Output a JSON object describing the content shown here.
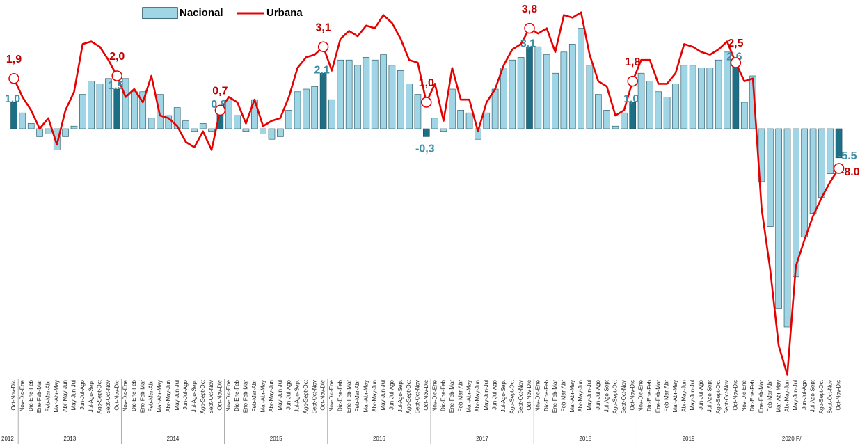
{
  "chart_data": {
    "type": "bar_line",
    "categories": [
      "Oct-Nov-Dic",
      "Nov-Dic-Ene",
      "Dic-Ene-Feb",
      "Ene-Feb-Mar",
      "Feb-Mar-Abr",
      "Mar-Abr-May",
      "Abr-May-Jun",
      "May-Jun-Jul",
      "Jun-Jul-Ago",
      "Jul-Ago-Sept",
      "Ago-Sept-Oct",
      "Sept-Oct-Nov",
      "Oct-Nov-Dic",
      "Nov-Dic-Ene",
      "Dic-Ene-Feb",
      "Ene-Feb-Mar",
      "Feb-Mar-Abr",
      "Mar-Abr-May",
      "Abr-May-Jun",
      "May-Jun-Jul",
      "Jun-Jul-Ago",
      "Jul-Ago-Sept",
      "Ago-Sept-Oct",
      "Sept-Oct-Nov",
      "Oct-Nov-Dic",
      "Nov-Dic-Ene",
      "Dic-Ene-Feb",
      "Ene-Feb-Mar",
      "Feb-Mar-Abr",
      "Mar-Abr-May",
      "Abr-May-Jun",
      "May-Jun-Jul",
      "Jun-Jul-Ago",
      "Jul-Ago-Sept",
      "Ago-Sept-Oct",
      "Sept-Oct-Nov",
      "Oct-Nov-Dic",
      "Nov-Dic-Ene",
      "Dic-Ene-Feb",
      "Ene-Feb-Mar",
      "Feb-Mar-Abr",
      "Mar-Abr-May",
      "Abr-May-Jun",
      "May-Jun-Jul",
      "Jun-Jul-Ago",
      "Jul-Ago-Sept",
      "Ago-Sept-Oct",
      "Sept-Oct-Nov",
      "Oct-Nov-Dic",
      "Nov-Dic-Ene",
      "Dic-Ene-Feb",
      "Ene-Feb-Mar",
      "Feb-Mar-Abr",
      "Mar-Abr-May",
      "Abr-May-Jun",
      "May-Jun-Jul",
      "Jun-Jul-Ago",
      "Jul-Ago-Sept",
      "Ago-Sept-Oct",
      "Sept-Oct-Nov",
      "Oct-Nov-Dic",
      "Nov-Dic-Ene",
      "Dic-Ene-Feb",
      "Ene-Feb-Mar",
      "Feb-Mar-Abr",
      "Mar-Abr-May",
      "Abr-May-Jun",
      "May-Jun-Jul",
      "Jun-Jul-Ago",
      "Jul-Ago-Sept",
      "Ago-Sept-Oct",
      "Sept-Oct-Nov",
      "Oct-Nov-Dic",
      "Nov-Dic-Ene",
      "Dic-Ene-Feb",
      "Ene-Feb-Mar",
      "Feb-Mar-Abr",
      "Mar-Abr-May",
      "Abr-May-Jun",
      "May-Jun-Jul",
      "Jun-Jul-Ago",
      "Jul-Ago-Sept",
      "Ago-Sept-Oct",
      "Sept-Oct-Nov",
      "Oct-Nov-Dic",
      "Nov-Dic-Ene",
      "Dic-Ene-Feb",
      "Ene-Feb-Mar",
      "Feb-Mar-Abr",
      "Mar-Abr-May",
      "Abr-May-Jun",
      "May-Jun-Jul",
      "Jun-Jul-Ago",
      "Jul-Ago-Sept",
      "Ago-Sept-Oct",
      "Sept-Oct-Nov",
      "Oct-Nov-Dic"
    ],
    "years": [
      "2012",
      "2013",
      "2014",
      "2015",
      "2016",
      "2017",
      "2018",
      "2019",
      "2020 P/"
    ],
    "series": [
      {
        "name": "Nacional",
        "color": "#9fd5e4",
        "highlight_color": "#1d6f86",
        "label_color": "#3b8ea5",
        "values": [
          1.0,
          0.6,
          0.2,
          -0.3,
          -0.2,
          -0.8,
          -0.3,
          0.1,
          1.3,
          1.8,
          1.7,
          1.9,
          1.5,
          1.9,
          1.4,
          1.4,
          0.4,
          1.3,
          0.5,
          0.8,
          0.3,
          -0.1,
          0.2,
          -0.1,
          0.8,
          1.1,
          0.5,
          -0.1,
          1.1,
          -0.2,
          -0.4,
          -0.3,
          0.7,
          1.4,
          1.5,
          1.6,
          2.1,
          1.1,
          2.6,
          2.6,
          2.4,
          2.7,
          2.6,
          2.8,
          2.4,
          2.2,
          1.7,
          1.3,
          -0.3,
          0.4,
          -0.1,
          1.5,
          0.7,
          0.6,
          -0.4,
          0.6,
          1.5,
          2.3,
          2.6,
          2.7,
          3.1,
          3.1,
          2.8,
          2.1,
          2.9,
          3.2,
          3.8,
          2.4,
          1.3,
          0.7,
          0.1,
          0.6,
          1.0,
          2.1,
          1.8,
          1.4,
          1.2,
          1.7,
          2.4,
          2.4,
          2.3,
          2.3,
          2.6,
          2.9,
          2.6,
          1.0,
          2.0,
          -2.0,
          -3.7,
          -6.8,
          -7.5,
          -5.6,
          -4.1,
          -3.2,
          -2.6,
          -1.7,
          -1.1
        ],
        "value_labels": [
          "1,0",
          null,
          null,
          null,
          null,
          null,
          null,
          null,
          null,
          null,
          null,
          null,
          "1,5",
          null,
          null,
          null,
          null,
          null,
          null,
          null,
          null,
          null,
          null,
          null,
          "0,8",
          null,
          null,
          null,
          null,
          null,
          null,
          null,
          null,
          null,
          null,
          null,
          "2,1",
          null,
          null,
          null,
          null,
          null,
          null,
          null,
          null,
          null,
          null,
          null,
          "-0,3",
          null,
          null,
          null,
          null,
          null,
          null,
          null,
          null,
          null,
          null,
          null,
          "3,1",
          null,
          null,
          null,
          null,
          null,
          null,
          null,
          null,
          null,
          null,
          null,
          "1,0",
          null,
          null,
          null,
          null,
          null,
          null,
          null,
          null,
          null,
          null,
          null,
          "2,6",
          null,
          null,
          null,
          null,
          null,
          null,
          null,
          null,
          null,
          null,
          null,
          null
        ]
      },
      {
        "name": "Urbana",
        "color": "#e60000",
        "label_color": "#c00000",
        "values": [
          1.9,
          1.2,
          0.7,
          0.0,
          0.4,
          -0.6,
          0.7,
          1.4,
          3.2,
          3.3,
          3.1,
          2.6,
          2.0,
          1.2,
          1.5,
          1.0,
          2.0,
          0.5,
          0.4,
          0.1,
          -0.5,
          -0.7,
          -0.1,
          -0.8,
          0.7,
          1.2,
          1.0,
          0.2,
          1.1,
          0.1,
          0.3,
          0.4,
          1.2,
          2.3,
          2.7,
          2.8,
          3.1,
          2.2,
          3.4,
          3.7,
          3.5,
          3.9,
          3.8,
          4.3,
          4.0,
          3.4,
          2.6,
          2.5,
          1.0,
          1.7,
          0.3,
          2.3,
          1.1,
          1.1,
          -0.1,
          1.0,
          1.5,
          2.4,
          3.0,
          3.2,
          3.8,
          3.6,
          3.8,
          2.9,
          4.3,
          4.2,
          4.4,
          2.8,
          1.8,
          1.6,
          0.5,
          0.7,
          1.8,
          2.6,
          2.6,
          1.7,
          1.7,
          2.1,
          3.2,
          3.1,
          2.9,
          2.8,
          3.0,
          3.3,
          2.5,
          1.8,
          1.9,
          -3.0,
          -5.3,
          -8.2,
          -9.3,
          -5.2,
          -4.2,
          -3.3,
          -2.6,
          -2.0,
          -1.5
        ],
        "value_labels": [
          "1,9",
          null,
          null,
          null,
          null,
          null,
          null,
          null,
          null,
          null,
          null,
          null,
          "2,0",
          null,
          null,
          null,
          null,
          null,
          null,
          null,
          null,
          null,
          null,
          null,
          "0,7",
          null,
          null,
          null,
          null,
          null,
          null,
          null,
          null,
          null,
          null,
          null,
          "3,1",
          null,
          null,
          null,
          null,
          null,
          null,
          null,
          null,
          null,
          null,
          null,
          "1,0",
          null,
          null,
          null,
          null,
          null,
          null,
          null,
          null,
          null,
          null,
          null,
          "3,8",
          null,
          null,
          null,
          null,
          null,
          null,
          null,
          null,
          null,
          null,
          null,
          "1,8",
          null,
          null,
          null,
          null,
          null,
          null,
          null,
          null,
          null,
          null,
          null,
          "2,5",
          null,
          null,
          null,
          null,
          null,
          null,
          null,
          null,
          null,
          null,
          null,
          null
        ]
      }
    ],
    "annotations": [
      "-5.5",
      "-8.0"
    ]
  }
}
